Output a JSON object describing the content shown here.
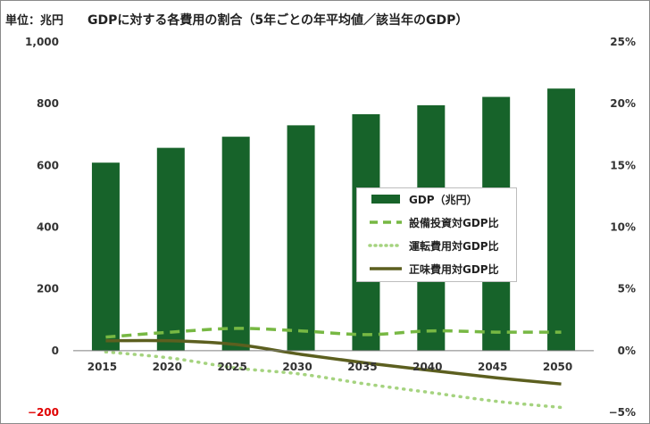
{
  "unit_label": "単位：兆円",
  "chart_data": {
    "type": "bar",
    "title": "GDPに対する各費用の割合（5年ごとの年平均値／該当年のGDP）",
    "categories": [
      "2015",
      "2020",
      "2025",
      "2030",
      "2035",
      "2040",
      "2045",
      "2050"
    ],
    "y_left": {
      "ylim": [
        -200,
        1000
      ],
      "ticks": [
        "−200",
        "0",
        "200",
        "400",
        "600",
        "800",
        "1,000"
      ],
      "tick_values": [
        -200,
        0,
        200,
        400,
        600,
        800,
        1000
      ]
    },
    "y_right": {
      "ylim": [
        -5,
        25
      ],
      "ticks": [
        "−5%",
        "0%",
        "5%",
        "10%",
        "15%",
        "20%",
        "25%"
      ],
      "tick_values": [
        -5,
        0,
        5,
        10,
        15,
        20,
        25
      ]
    },
    "grid": false,
    "legend_position": "center-right",
    "bar_series": {
      "name": "GDP（兆円）",
      "axis": "left",
      "color": "#17632a",
      "values": [
        609,
        657,
        693,
        730,
        766,
        795,
        822,
        849
      ]
    },
    "line_series": [
      {
        "name": "設備投資対GDP比",
        "axis": "right",
        "style": "dashed",
        "color": "#77b843",
        "values": [
          1.1,
          1.5,
          1.8,
          1.6,
          1.3,
          1.6,
          1.5,
          1.5
        ]
      },
      {
        "name": "運転費用対GDP比",
        "axis": "right",
        "style": "dotted",
        "color": "#a5d37f",
        "values": [
          -0.1,
          -0.6,
          -1.4,
          -1.9,
          -2.7,
          -3.4,
          -4.1,
          -4.6
        ]
      },
      {
        "name": "正味費用対GDP比",
        "axis": "right",
        "style": "solid",
        "color": "#5c5f1f",
        "values": [
          0.8,
          0.8,
          0.5,
          -0.3,
          -1.0,
          -1.6,
          -2.2,
          -2.7
        ]
      }
    ]
  }
}
